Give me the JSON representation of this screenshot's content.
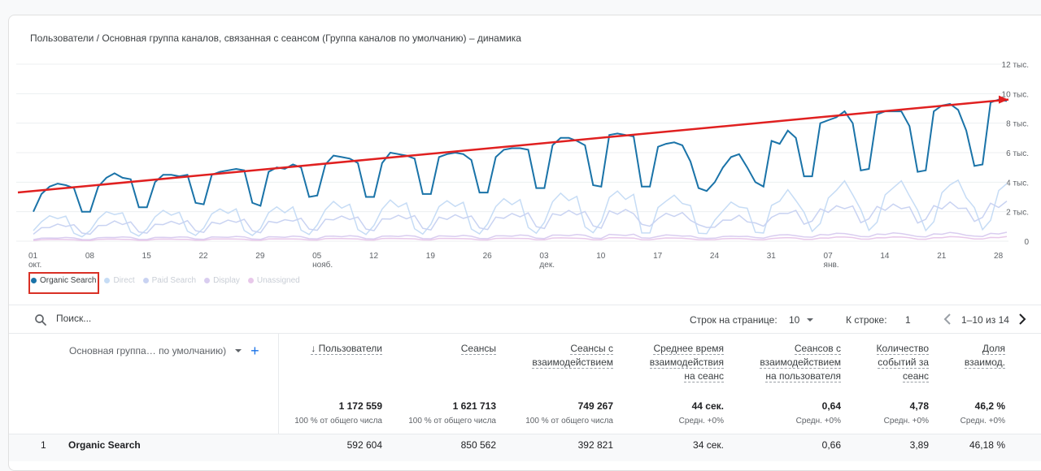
{
  "chart": {
    "title": "Пользователи / Основная группа каналов, связанная с сеансом (Группа каналов по умолчанию) – динамика",
    "y_ticks": [
      "12 тыс.",
      "10 тыс.",
      "8 тыс.",
      "6 тыс.",
      "4 тыс.",
      "2 тыс.",
      "0"
    ],
    "x_ticks": [
      {
        "day": "01",
        "month": "окт."
      },
      {
        "day": "08",
        "month": ""
      },
      {
        "day": "15",
        "month": ""
      },
      {
        "day": "22",
        "month": ""
      },
      {
        "day": "29",
        "month": ""
      },
      {
        "day": "05",
        "month": "нояб."
      },
      {
        "day": "12",
        "month": ""
      },
      {
        "day": "19",
        "month": ""
      },
      {
        "day": "26",
        "month": ""
      },
      {
        "day": "03",
        "month": "дек."
      },
      {
        "day": "10",
        "month": ""
      },
      {
        "day": "17",
        "month": ""
      },
      {
        "day": "24",
        "month": ""
      },
      {
        "day": "31",
        "month": ""
      },
      {
        "day": "07",
        "month": "янв."
      },
      {
        "day": "14",
        "month": ""
      },
      {
        "day": "21",
        "month": ""
      },
      {
        "day": "28",
        "month": ""
      }
    ],
    "legend": [
      {
        "label": "Organic Search",
        "color": "#1a73a8",
        "active": true
      },
      {
        "label": "Direct",
        "color": "#c6dcf5",
        "active": false
      },
      {
        "label": "Paid Search",
        "color": "#c9d3f2",
        "active": false
      },
      {
        "label": "Display",
        "color": "#d9cdf0",
        "active": false
      },
      {
        "label": "Unassigned",
        "color": "#e8c8ea",
        "active": false
      }
    ],
    "trend_color": "#e02020"
  },
  "chart_data": {
    "type": "line",
    "ylim": [
      0,
      12000
    ],
    "grid": true,
    "series": [
      {
        "name": "Organic Search",
        "color": "#1a73a8",
        "values": [
          2000,
          3200,
          3700,
          3900,
          3800,
          3600,
          2000,
          2000,
          3700,
          4300,
          4600,
          4300,
          4200,
          2300,
          2300,
          4000,
          4500,
          4500,
          4400,
          4500,
          2600,
          2500,
          4500,
          4700,
          4800,
          4900,
          4800,
          2600,
          2400,
          4700,
          5000,
          4900,
          5200,
          5000,
          3000,
          3100,
          5200,
          5800,
          5700,
          5600,
          5300,
          3000,
          3000,
          5300,
          6000,
          5900,
          5800,
          5600,
          3200,
          3200,
          5700,
          5900,
          6000,
          5900,
          5500,
          3300,
          3300,
          5700,
          6200,
          6300,
          6300,
          6200,
          3600,
          3600,
          6500,
          7000,
          7000,
          6800,
          6500,
          3800,
          3700,
          7200,
          7300,
          7200,
          7100,
          3700,
          3700,
          6400,
          6600,
          6700,
          6500,
          5400,
          3600,
          3400,
          4000,
          5000,
          5700,
          5900,
          5000,
          4000,
          3700,
          6800,
          6600,
          7500,
          7000,
          4400,
          4400,
          8000,
          8200,
          8400,
          8800,
          8000,
          4800,
          4900,
          8600,
          8800,
          8800,
          8800,
          7800,
          4700,
          4800,
          8800,
          9200,
          9300,
          8900,
          7500,
          5100,
          5200,
          9400,
          9600,
          9500
        ]
      }
    ],
    "trend_line": {
      "start": 3300,
      "end": 9600
    }
  },
  "toolbar": {
    "search_placeholder": "Поиск...",
    "rows_label": "Строк на странице:",
    "rows_value": "10",
    "goto_label": "К строке:",
    "goto_value": "1",
    "range": "1–10 из 14"
  },
  "table": {
    "dimension_header": "Основная группа… по умолчанию)",
    "columns": [
      {
        "title": [
          "↓ Пользователи"
        ],
        "total": "1 172 559",
        "sub": "100 % от общего числа"
      },
      {
        "title": [
          "Сеансы"
        ],
        "total": "1 621 713",
        "sub": "100 % от общего числа"
      },
      {
        "title": [
          "Сеансы с",
          "взаимодействием"
        ],
        "total": "749 267",
        "sub": "100 % от общего числа"
      },
      {
        "title": [
          "Среднее время",
          "взаимодействия",
          "на сеанс"
        ],
        "total": "44 сек.",
        "sub": "Средн. +0%"
      },
      {
        "title": [
          "Сеансов с",
          "взаимодействием",
          "на пользователя"
        ],
        "total": "0,64",
        "sub": "Средн. +0%"
      },
      {
        "title": [
          "Количество",
          "событий за",
          "сеанс"
        ],
        "total": "4,78",
        "sub": "Средн. +0%"
      },
      {
        "title": [
          "Доля",
          "взаимод."
        ],
        "total": "46,2 %",
        "sub": "Средн. +0%"
      }
    ],
    "rows": [
      {
        "index": "1",
        "name": "Organic Search",
        "values": [
          "592 604",
          "850 562",
          "392 821",
          "34 сек.",
          "0,66",
          "3,89",
          "46,18 %"
        ]
      }
    ]
  }
}
